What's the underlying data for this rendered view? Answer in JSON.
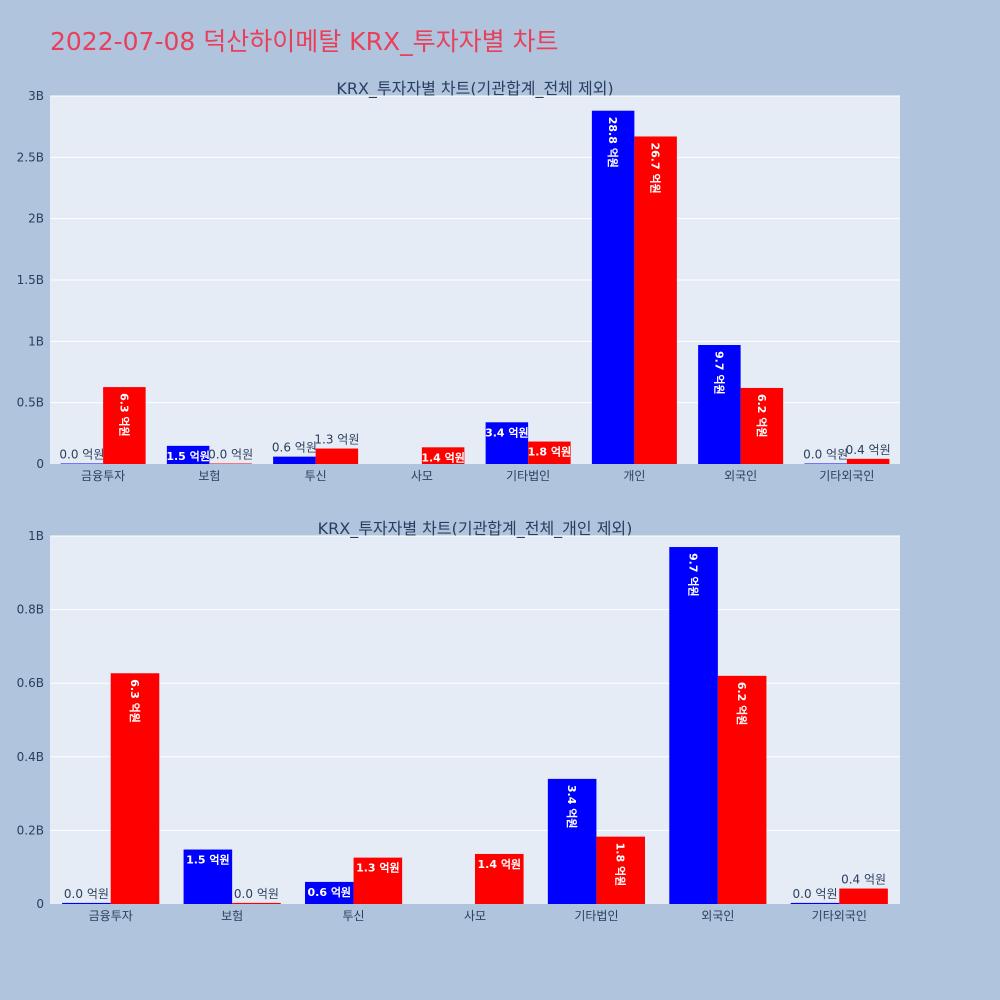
{
  "page": {
    "title": "2022-07-08 덕산하이메탈 KRX_투자자별 차트"
  },
  "colors": {
    "series_a": "#0000ff",
    "series_b": "#ff0000",
    "plot_bg": "#e5ecf6",
    "page_bg": "#b0c4de",
    "title": "#e8405a"
  },
  "chart_data": [
    {
      "type": "bar",
      "title": "KRX_투자자별 차트(기관합계_전체 제외)",
      "categories": [
        "금융투자",
        "보험",
        "투신",
        "사모",
        "기타법인",
        "개인",
        "외국인",
        "기타외국인"
      ],
      "series": [
        {
          "values": [
            0.003,
            0.148,
            0.06,
            null,
            0.34,
            2.88,
            0.97,
            0.003
          ],
          "labels": [
            "0.0 억원",
            "1.5 억원",
            "0.6 억원",
            "",
            "3.4 억원",
            "28.8 억원",
            "9.7 억원",
            "0.0 억원"
          ]
        },
        {
          "values": [
            0.627,
            0.003,
            0.126,
            0.136,
            0.183,
            2.67,
            0.62,
            0.042
          ],
          "labels": [
            "6.3 억원",
            "0.0 억원",
            "1.3 억원",
            "1.4 억원",
            "1.8 억원",
            "26.7 억원",
            "6.2 억원",
            "0.4 억원"
          ]
        }
      ],
      "yticks": [
        "0",
        "0.5B",
        "1B",
        "1.5B",
        "2B",
        "2.5B",
        "3B"
      ],
      "ylim": [
        0,
        3.0
      ],
      "grid": true,
      "legend": "none"
    },
    {
      "type": "bar",
      "title": "KRX_투자자별 차트(기관합계_전체_개인 제외)",
      "categories": [
        "금융투자",
        "보험",
        "투신",
        "사모",
        "기타법인",
        "외국인",
        "기타외국인"
      ],
      "series": [
        {
          "values": [
            0.003,
            0.148,
            0.06,
            null,
            0.34,
            0.97,
            0.003
          ],
          "labels": [
            "0.0 억원",
            "1.5 억원",
            "0.6 억원",
            "",
            "3.4 억원",
            "9.7 억원",
            "0.0 억원"
          ]
        },
        {
          "values": [
            0.627,
            0.003,
            0.126,
            0.136,
            0.183,
            0.62,
            0.042
          ],
          "labels": [
            "6.3 억원",
            "0.0 억원",
            "1.3 억원",
            "1.4 억원",
            "1.8 억원",
            "6.2 억원",
            "0.4 억원"
          ]
        }
      ],
      "yticks": [
        "0",
        "0.2B",
        "0.4B",
        "0.6B",
        "0.8B",
        "1B"
      ],
      "ylim": [
        0,
        1.0
      ],
      "grid": true,
      "legend": "none"
    }
  ]
}
